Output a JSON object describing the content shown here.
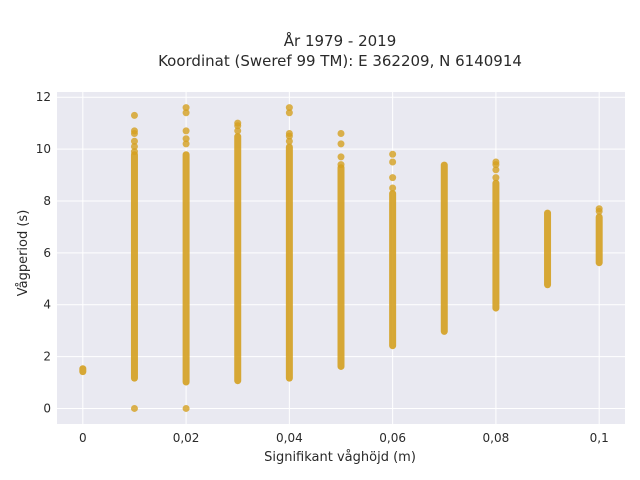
{
  "chart_data": {
    "type": "scatter",
    "title_lines": [
      "År 1979 - 2019",
      "Koordinat (Sweref 99 TM): E 362209, N 6140914"
    ],
    "xlabel": "Signifikant våghöjd (m)",
    "ylabel": "Vågperiod (s)",
    "xlim": [
      -0.005,
      0.105
    ],
    "ylim": [
      -0.6,
      12.2
    ],
    "x_ticks": [
      0,
      0.02,
      0.04,
      0.06,
      0.08,
      0.1
    ],
    "x_tick_labels": [
      "0",
      "0,02",
      "0,04",
      "0,06",
      "0,08",
      "0,1"
    ],
    "y_ticks": [
      0,
      2,
      4,
      6,
      8,
      10,
      12
    ],
    "y_tick_labels": [
      "0",
      "2",
      "4",
      "6",
      "8",
      "10",
      "12"
    ],
    "grid": true,
    "marker_color": "#d4a020",
    "plot_background": "#e9e9f1",
    "series": [
      {
        "points_summary": [
          {
            "x": 0.0,
            "y_min": 1.4,
            "y_max": 1.55,
            "outliers": []
          },
          {
            "x": 0.01,
            "y_min": 1.15,
            "y_max": 9.8,
            "outliers": [
              0.0,
              9.9,
              10.1,
              10.3,
              10.6,
              10.7,
              11.3
            ]
          },
          {
            "x": 0.02,
            "y_min": 1.0,
            "y_max": 9.8,
            "outliers": [
              0.0,
              10.2,
              10.4,
              10.7,
              11.4,
              11.6
            ]
          },
          {
            "x": 0.03,
            "y_min": 1.05,
            "y_max": 10.5,
            "outliers": [
              10.7,
              10.9,
              11.0
            ]
          },
          {
            "x": 0.04,
            "y_min": 1.15,
            "y_max": 10.1,
            "outliers": [
              10.3,
              10.5,
              10.6,
              11.4,
              11.6
            ]
          },
          {
            "x": 0.05,
            "y_min": 1.6,
            "y_max": 9.3,
            "outliers": [
              9.4,
              9.7,
              10.2,
              10.6
            ]
          },
          {
            "x": 0.06,
            "y_min": 2.4,
            "y_max": 8.3,
            "outliers": [
              8.5,
              8.9,
              9.5,
              9.8
            ]
          },
          {
            "x": 0.07,
            "y_min": 2.95,
            "y_max": 9.4,
            "outliers": []
          },
          {
            "x": 0.08,
            "y_min": 3.85,
            "y_max": 8.7,
            "outliers": [
              8.9,
              9.2,
              9.4,
              9.5
            ]
          },
          {
            "x": 0.09,
            "y_min": 4.75,
            "y_max": 7.55,
            "outliers": []
          },
          {
            "x": 0.1,
            "y_min": 5.6,
            "y_max": 7.4,
            "outliers": [
              7.6,
              7.7
            ]
          }
        ]
      }
    ]
  }
}
